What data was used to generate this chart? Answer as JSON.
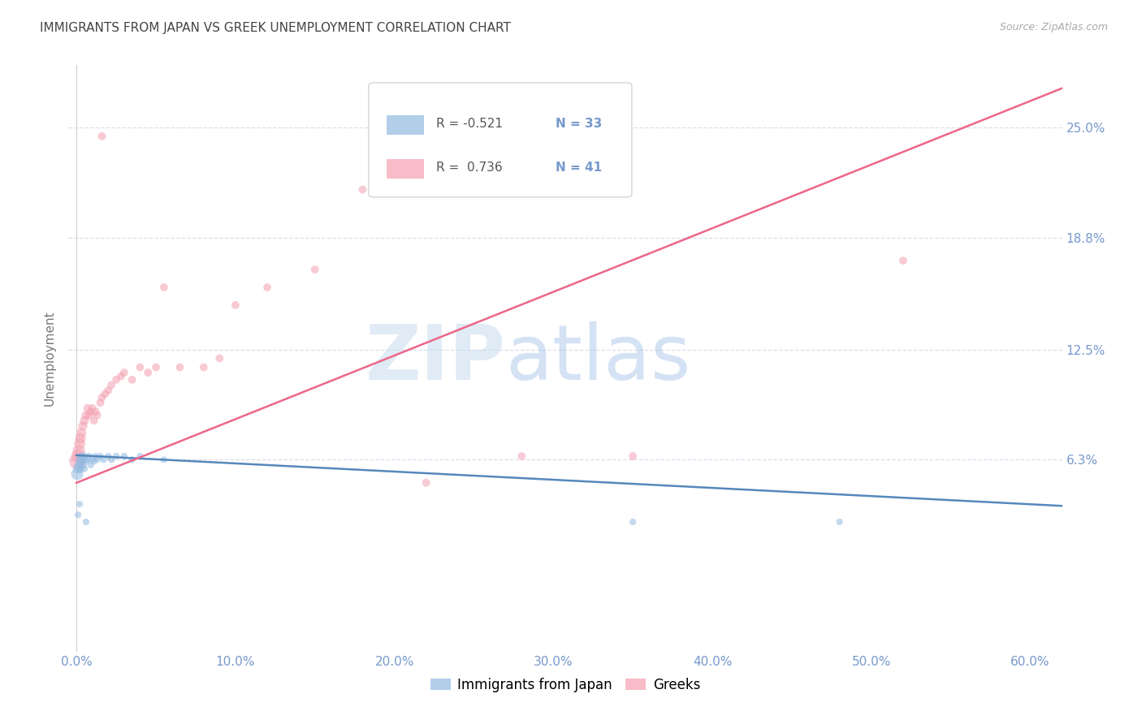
{
  "title": "IMMIGRANTS FROM JAPAN VS GREEK UNEMPLOYMENT CORRELATION CHART",
  "source": "Source: ZipAtlas.com",
  "xlabel_ticks": [
    "0.0%",
    "10.0%",
    "20.0%",
    "30.0%",
    "40.0%",
    "50.0%",
    "60.0%"
  ],
  "xlabel_vals": [
    0.0,
    0.1,
    0.2,
    0.3,
    0.4,
    0.5,
    0.6
  ],
  "ylabel": "Unemployment",
  "ylabel_ticks": [
    "6.3%",
    "12.5%",
    "18.8%",
    "25.0%"
  ],
  "ylabel_vals": [
    0.063,
    0.125,
    0.188,
    0.25
  ],
  "xlim": [
    -0.005,
    0.62
  ],
  "ylim": [
    -0.045,
    0.285
  ],
  "legend_blue_r": "R = -0.521",
  "legend_blue_n": "N = 33",
  "legend_pink_r": "R =  0.736",
  "legend_pink_n": "N = 41",
  "legend_label_blue": "Immigrants from Japan",
  "legend_label_pink": "Greeks",
  "color_blue": "#92BAE0",
  "color_pink": "#F4A0B0",
  "color_trendline_blue": "#5588BB",
  "color_trendline_pink": "#EE6688",
  "color_axis_labels": "#7799CC",
  "title_color": "#444444",
  "watermark_zip": "ZIP",
  "watermark_atlas": "atlas",
  "grid_color": "#DDDDEE",
  "blue_scatter_x": [
    0.0005,
    0.001,
    0.0015,
    0.002,
    0.0025,
    0.003,
    0.003,
    0.004,
    0.004,
    0.005,
    0.005,
    0.006,
    0.007,
    0.008,
    0.009,
    0.01,
    0.011,
    0.012,
    0.013,
    0.015,
    0.017,
    0.02,
    0.022,
    0.025,
    0.03,
    0.035,
    0.04,
    0.055,
    0.35,
    0.48,
    0.001,
    0.002,
    0.006
  ],
  "blue_scatter_y": [
    0.055,
    0.058,
    0.06,
    0.063,
    0.058,
    0.062,
    0.065,
    0.06,
    0.063,
    0.058,
    0.065,
    0.062,
    0.063,
    0.065,
    0.06,
    0.063,
    0.062,
    0.065,
    0.063,
    0.065,
    0.063,
    0.065,
    0.063,
    0.065,
    0.065,
    0.063,
    0.065,
    0.063,
    0.028,
    0.028,
    0.032,
    0.038,
    0.028
  ],
  "blue_scatter_sizes": [
    120,
    80,
    60,
    55,
    50,
    50,
    45,
    45,
    40,
    40,
    40,
    38,
    38,
    35,
    35,
    35,
    35,
    35,
    35,
    35,
    35,
    35,
    35,
    35,
    35,
    35,
    35,
    35,
    35,
    35,
    35,
    35,
    35
  ],
  "pink_scatter_x": [
    0.0005,
    0.001,
    0.0015,
    0.002,
    0.0025,
    0.003,
    0.004,
    0.005,
    0.006,
    0.007,
    0.008,
    0.009,
    0.01,
    0.011,
    0.012,
    0.013,
    0.015,
    0.016,
    0.018,
    0.02,
    0.022,
    0.025,
    0.028,
    0.03,
    0.035,
    0.04,
    0.045,
    0.05,
    0.055,
    0.065,
    0.08,
    0.09,
    0.1,
    0.12,
    0.15,
    0.18,
    0.22,
    0.28,
    0.35,
    0.52,
    0.016
  ],
  "pink_scatter_y": [
    0.062,
    0.065,
    0.068,
    0.072,
    0.075,
    0.078,
    0.082,
    0.085,
    0.088,
    0.092,
    0.088,
    0.09,
    0.092,
    0.085,
    0.09,
    0.088,
    0.095,
    0.098,
    0.1,
    0.102,
    0.105,
    0.108,
    0.11,
    0.112,
    0.108,
    0.115,
    0.112,
    0.115,
    0.16,
    0.115,
    0.115,
    0.12,
    0.15,
    0.16,
    0.17,
    0.215,
    0.05,
    0.065,
    0.065,
    0.175,
    0.245
  ],
  "pink_scatter_sizes": [
    200,
    150,
    120,
    100,
    90,
    80,
    70,
    65,
    60,
    55,
    55,
    50,
    50,
    50,
    50,
    50,
    50,
    50,
    50,
    50,
    50,
    50,
    50,
    50,
    50,
    50,
    50,
    50,
    50,
    50,
    50,
    50,
    50,
    50,
    50,
    50,
    50,
    50,
    50,
    50,
    50
  ],
  "blue_trendline_x": [
    0.0,
    0.62
  ],
  "blue_trendline_y": [
    0.0655,
    0.037
  ],
  "pink_trendline_x": [
    0.0,
    0.62
  ],
  "pink_trendline_y": [
    0.05,
    0.272
  ]
}
